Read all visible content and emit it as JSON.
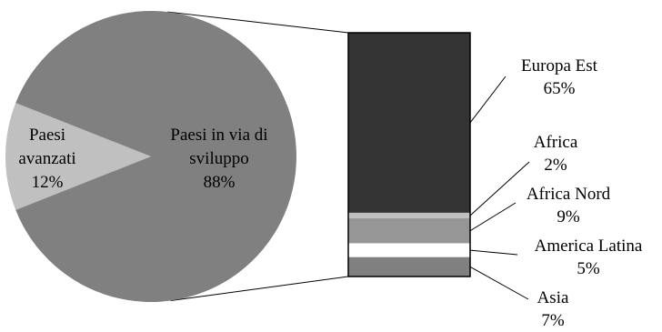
{
  "chart_data": [
    {
      "type": "pie",
      "categories": [
        "Paesi avanzati",
        "Paesi in via di sviluppo"
      ],
      "values": [
        12,
        88
      ],
      "labels": [
        {
          "lines": [
            "Paesi",
            "avanzati",
            "12%"
          ]
        },
        {
          "lines": [
            "Paesi in via di",
            "sviluppo",
            "88%"
          ]
        }
      ],
      "colors": [
        "#c0c0c0",
        "#808080"
      ]
    },
    {
      "type": "bar",
      "stacked": true,
      "breakdown_of": "Paesi in via di sviluppo",
      "categories": [
        "Europa Est",
        "Africa",
        "Africa Nord",
        "America Latina",
        "Asia"
      ],
      "values": [
        65,
        2,
        9,
        5,
        7
      ],
      "labels": [
        {
          "lines": [
            "Europa Est",
            "65%"
          ]
        },
        {
          "lines": [
            "Africa",
            "2%"
          ]
        },
        {
          "lines": [
            "Africa Nord",
            "9%"
          ]
        },
        {
          "lines": [
            "America Latina",
            "5%"
          ]
        },
        {
          "lines": [
            "Asia",
            "7%"
          ]
        }
      ],
      "colors": [
        "#333333",
        "#c0c0c0",
        "#969696",
        "#ffffff",
        "#808080"
      ]
    }
  ]
}
